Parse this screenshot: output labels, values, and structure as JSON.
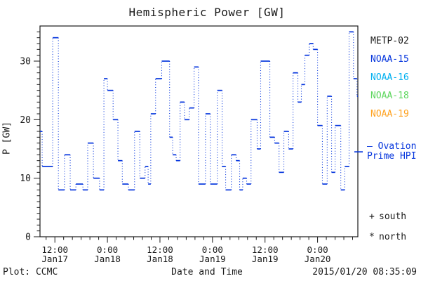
{
  "chart_data": {
    "type": "line",
    "subtype": "step-staircase-with-dotted-connectors",
    "title": "Hemispheric Power [GW]",
    "xlabel": "Date and Time",
    "ylabel": "P [GW]",
    "ylim": [
      0,
      36
    ],
    "y_major_ticks": [
      0,
      10,
      20,
      30
    ],
    "y_minor_step": 1,
    "xlim_hours": [
      8.6,
      81.2
    ],
    "x_minor_step_hours": 2,
    "x_major_ticks": [
      {
        "hour": 12,
        "time": "12:00",
        "date": "Jan17"
      },
      {
        "hour": 24,
        "time": "0:00",
        "date": "Jan18"
      },
      {
        "hour": 36,
        "time": "12:00",
        "date": "Jan18"
      },
      {
        "hour": 48,
        "time": "0:00",
        "date": "Jan19"
      },
      {
        "hour": 60,
        "time": "12:00",
        "date": "Jan19"
      },
      {
        "hour": 72,
        "time": "0:00",
        "date": "Jan20"
      }
    ],
    "grid": false,
    "series": [
      {
        "name": "NOAA-15 Ovation Prime HPI",
        "color": "#0535dd",
        "segments_hour_start_end_gw": [
          [
            8.6,
            9.1,
            18
          ],
          [
            9.1,
            11.5,
            12
          ],
          [
            11.5,
            12.8,
            34
          ],
          [
            12.8,
            14.2,
            8
          ],
          [
            14.2,
            15.5,
            14
          ],
          [
            15.5,
            16.8,
            8
          ],
          [
            16.8,
            18.4,
            9
          ],
          [
            18.4,
            19.5,
            8
          ],
          [
            19.5,
            20.8,
            16
          ],
          [
            20.8,
            22.2,
            10
          ],
          [
            22.2,
            23.2,
            8
          ],
          [
            23.2,
            24.0,
            27
          ],
          [
            24.0,
            25.3,
            25
          ],
          [
            25.3,
            26.4,
            20
          ],
          [
            26.4,
            27.4,
            13
          ],
          [
            27.4,
            28.8,
            9
          ],
          [
            28.8,
            30.2,
            8
          ],
          [
            30.2,
            31.4,
            18
          ],
          [
            31.4,
            32.6,
            10
          ],
          [
            32.6,
            33.3,
            12
          ],
          [
            33.3,
            33.9,
            9
          ],
          [
            33.9,
            35.0,
            21
          ],
          [
            35.0,
            36.4,
            27
          ],
          [
            36.4,
            38.2,
            30
          ],
          [
            38.2,
            38.9,
            17
          ],
          [
            38.9,
            39.7,
            14
          ],
          [
            39.7,
            40.6,
            13
          ],
          [
            40.6,
            41.6,
            23
          ],
          [
            41.6,
            42.7,
            20
          ],
          [
            42.7,
            43.8,
            22
          ],
          [
            43.8,
            44.8,
            29
          ],
          [
            44.8,
            46.4,
            9
          ],
          [
            46.4,
            47.5,
            21
          ],
          [
            47.5,
            49.1,
            9
          ],
          [
            49.1,
            50.2,
            25
          ],
          [
            50.2,
            51.0,
            12
          ],
          [
            51.0,
            52.3,
            8
          ],
          [
            52.3,
            53.4,
            14
          ],
          [
            53.4,
            54.2,
            13
          ],
          [
            54.2,
            54.9,
            8
          ],
          [
            54.9,
            55.8,
            10
          ],
          [
            55.8,
            56.8,
            9
          ],
          [
            56.8,
            58.2,
            20
          ],
          [
            58.2,
            59.0,
            15
          ],
          [
            59.0,
            61.1,
            30
          ],
          [
            61.1,
            62.2,
            17
          ],
          [
            62.2,
            63.2,
            16
          ],
          [
            63.2,
            64.3,
            11
          ],
          [
            64.3,
            65.4,
            18
          ],
          [
            65.4,
            66.4,
            15
          ],
          [
            66.4,
            67.5,
            28
          ],
          [
            67.5,
            68.3,
            23
          ],
          [
            68.3,
            69.1,
            26
          ],
          [
            69.1,
            70.1,
            31
          ],
          [
            70.1,
            71.0,
            33
          ],
          [
            71.0,
            72.0,
            32
          ],
          [
            72.0,
            73.1,
            19
          ],
          [
            73.1,
            74.2,
            9
          ],
          [
            74.2,
            75.2,
            24
          ],
          [
            75.2,
            76.0,
            11
          ],
          [
            76.0,
            77.3,
            19
          ],
          [
            77.3,
            78.2,
            8
          ],
          [
            78.2,
            79.2,
            12
          ],
          [
            79.2,
            80.2,
            35
          ],
          [
            80.2,
            81.0,
            27
          ],
          [
            81.0,
            81.2,
            24
          ]
        ]
      }
    ]
  },
  "legend": {
    "satellites": [
      {
        "label": "METP-02",
        "color": "#1a1a1a"
      },
      {
        "label": "NOAA-15",
        "color": "#0535dd"
      },
      {
        "label": "NOAA-16",
        "color": "#00b0f0"
      },
      {
        "label": "NOAA-18",
        "color": "#5cd65c"
      },
      {
        "label": "NOAA-19",
        "color": "#ffa11e"
      }
    ],
    "ovation": {
      "line1": "– Ovation",
      "line2": "Prime HPI",
      "color": "#0535dd",
      "sample_value_gw": 14.5
    },
    "hemisphere_markers": [
      {
        "symbol": "+",
        "label": "south"
      },
      {
        "symbol": "*",
        "label": "north"
      }
    ]
  },
  "footer": {
    "left": "Plot: CCMC",
    "right": "2015/01/20 08:35:09"
  }
}
